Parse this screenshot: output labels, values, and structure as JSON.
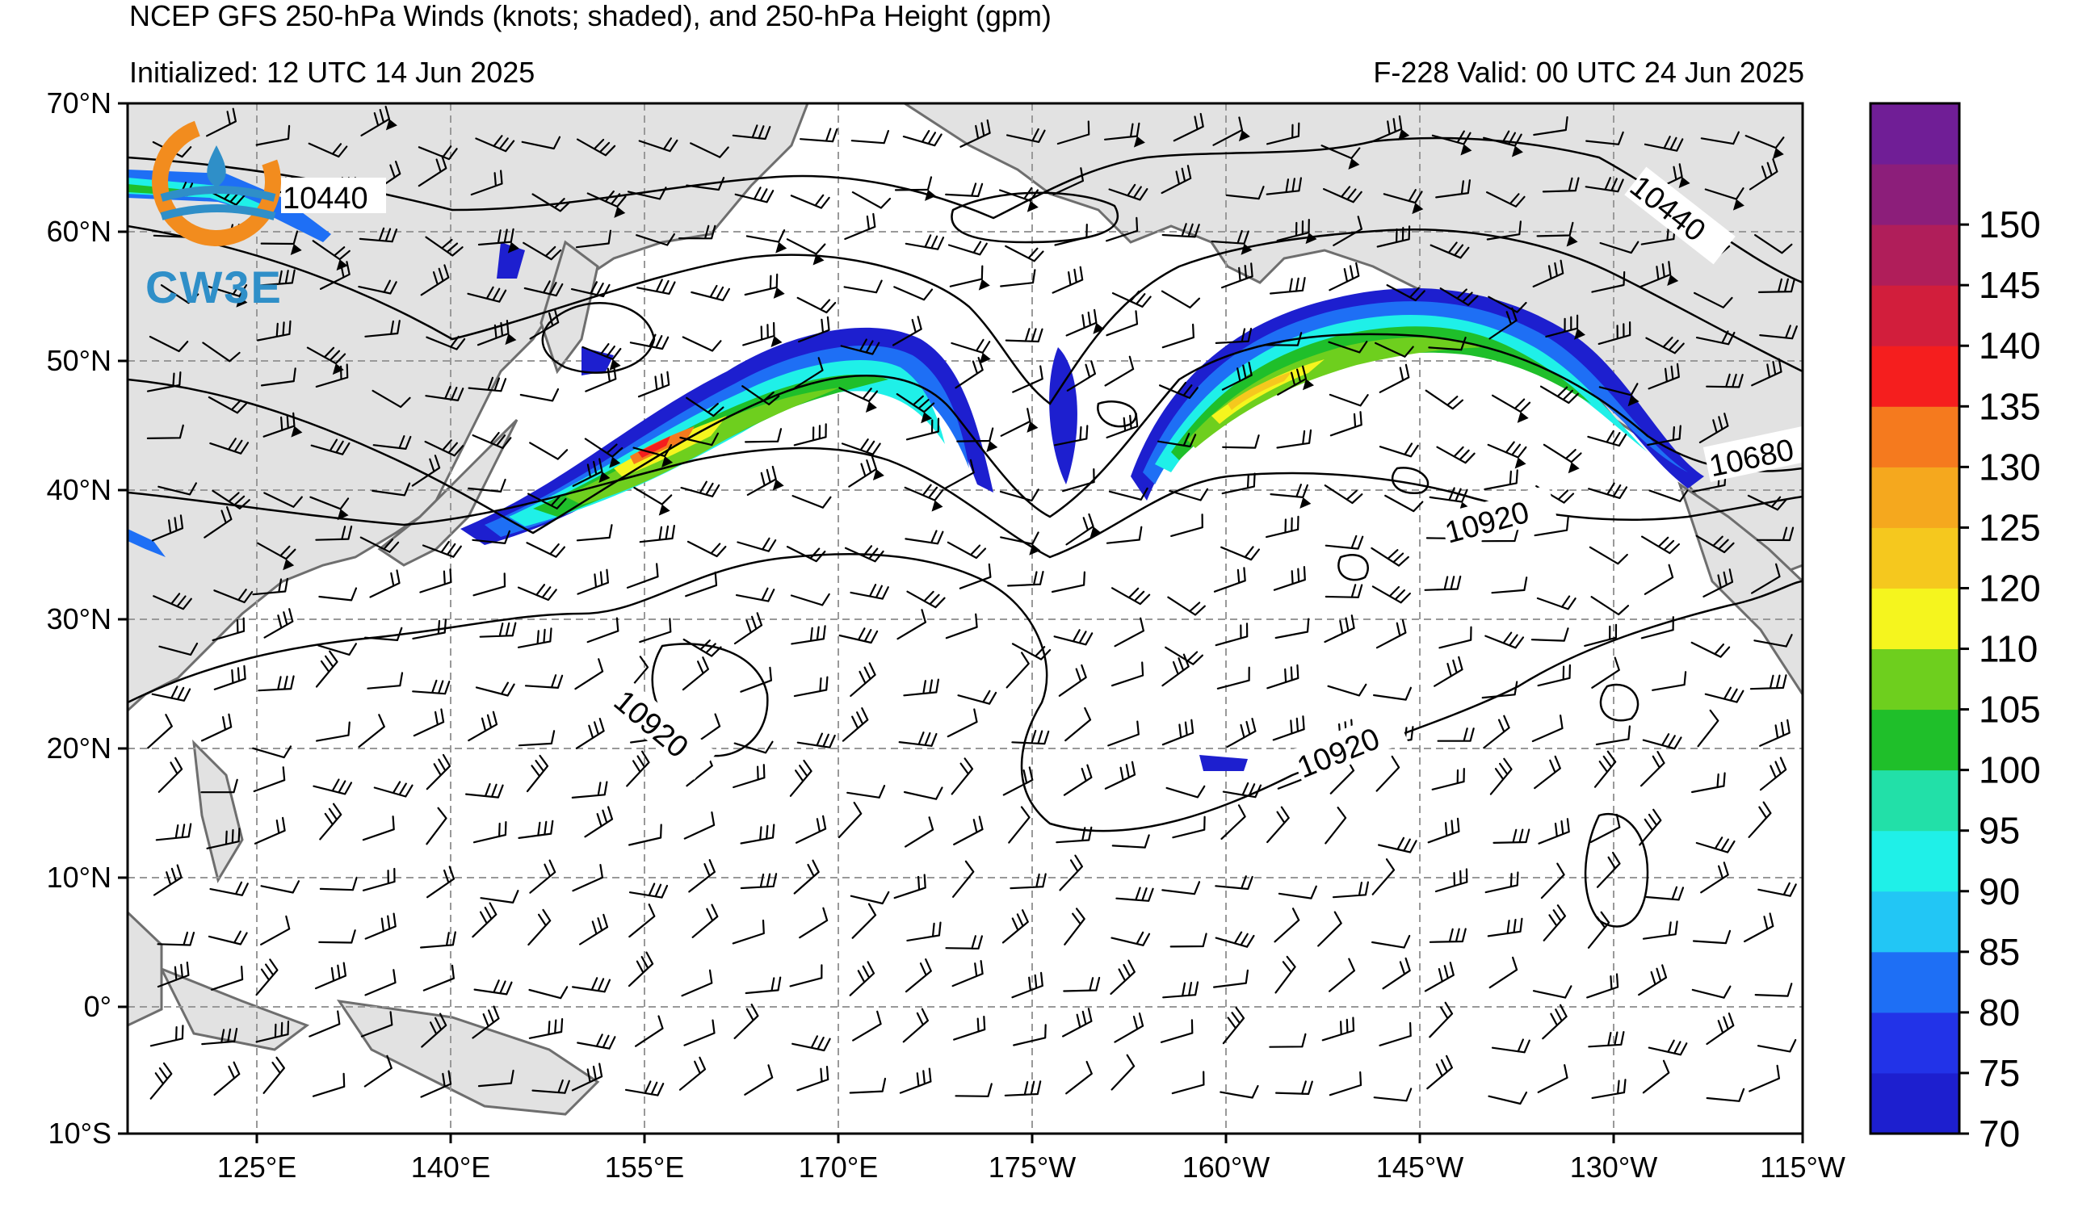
{
  "header": {
    "title": "NCEP GFS 250-hPa Winds (knots; shaded), and 250-hPa Height (gpm)",
    "initialized": "Initialized: 12 UTC 14 Jun 2025",
    "valid": "F-228  Valid: 00 UTC 24 Jun 2025"
  },
  "logo": {
    "text": "CW3E",
    "ring_color": "#f28c1e",
    "text_color": "#2f8fc8"
  },
  "axes": {
    "lat_labels": [
      "70°N",
      "60°N",
      "50°N",
      "40°N",
      "30°N",
      "20°N",
      "10°N",
      "0°",
      "10°S"
    ],
    "lon_labels": [
      "125°E",
      "140°E",
      "155°E",
      "170°E",
      "175°W",
      "160°W",
      "145°W",
      "130°W",
      "115°W"
    ]
  },
  "colorbar": {
    "labels": [
      "70",
      "75",
      "80",
      "85",
      "90",
      "95",
      "100",
      "105",
      "110",
      "120",
      "125",
      "130",
      "135",
      "140",
      "145",
      "150"
    ],
    "colors": [
      "#1d1fcf",
      "#2233e8",
      "#1e6ff5",
      "#22c6f5",
      "#1ff0e8",
      "#22e0a8",
      "#1fbf2a",
      "#6ecf1e",
      "#f5f51e",
      "#f5c81e",
      "#f5a81e",
      "#f57a1e",
      "#f51e1e",
      "#d21e3c",
      "#b01e5a",
      "#8c1e7a",
      "#701e96"
    ]
  },
  "contour_labels": {
    "l1": "10440",
    "l2": "10440",
    "l3": "10680",
    "l4": "10920",
    "l5": "10920",
    "l6": "10920"
  },
  "colors": {
    "land": "#e2e2e2",
    "coast": "#6e6e6e",
    "grid": "#999999",
    "contour": "#000000"
  }
}
